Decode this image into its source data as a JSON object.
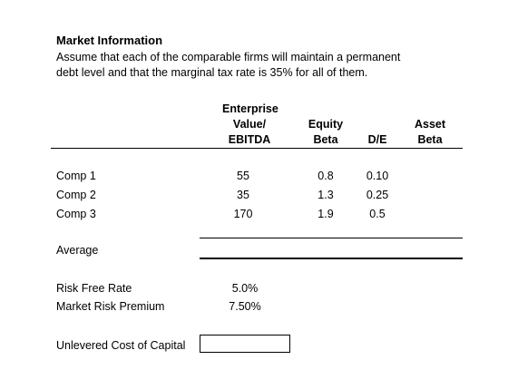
{
  "section": {
    "title": "Market Information",
    "description_lines": [
      "Assume that each of the comparable firms will maintain a permanent",
      "debt level and that the marginal tax rate is 35% for all of them."
    ]
  },
  "table": {
    "headers": {
      "ev": [
        "Enterprise",
        "Value/",
        "EBITDA"
      ],
      "equity_beta": [
        "Equity",
        "Beta"
      ],
      "de": [
        "D/E"
      ],
      "asset_beta": [
        "Asset",
        "Beta"
      ]
    },
    "rows": [
      {
        "label": "Comp 1",
        "ev": "55",
        "equity_beta": "0.8",
        "de": "0.10",
        "asset_beta": ""
      },
      {
        "label": "Comp 2",
        "ev": "35",
        "equity_beta": "1.3",
        "de": "0.25",
        "asset_beta": ""
      },
      {
        "label": "Comp 3",
        "ev": "170",
        "equity_beta": "1.9",
        "de": "0.5",
        "asset_beta": ""
      }
    ],
    "average_label": "Average"
  },
  "inputs": {
    "risk_free_label": "Risk Free Rate",
    "risk_free_value": "5.0%",
    "mrp_label": "Market Risk Premium",
    "mrp_value": "7.50%"
  },
  "result": {
    "label": "Unlevered Cost of Capital",
    "value": ""
  }
}
